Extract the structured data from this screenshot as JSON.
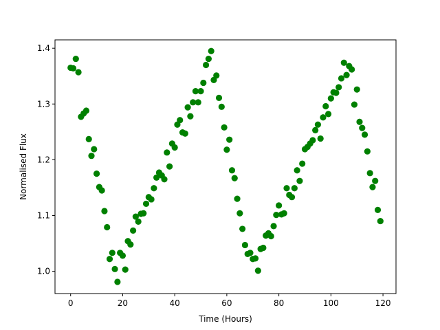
{
  "chart_data": {
    "type": "scatter",
    "xlabel": "Time (Hours)",
    "ylabel": "Normalised Flux",
    "xlim": [
      -6,
      125
    ],
    "ylim": [
      0.96,
      1.415
    ],
    "xticks": [
      0,
      20,
      40,
      60,
      80,
      100,
      120
    ],
    "yticks": [
      1.0,
      1.1,
      1.2,
      1.3,
      1.4
    ],
    "ytick_labels": [
      "1.0",
      "1.1",
      "1.2",
      "1.3",
      "1.4"
    ],
    "grid": false,
    "marker_color": "#008000",
    "x": [
      0,
      1,
      2,
      3,
      4,
      5,
      6,
      7,
      8,
      9,
      10,
      11,
      12,
      13,
      14,
      15,
      16,
      17,
      18,
      19,
      20,
      21,
      22,
      23,
      24,
      25,
      26,
      27,
      28,
      29,
      30,
      31,
      32,
      33,
      34,
      35,
      36,
      37,
      38,
      39,
      40,
      41,
      42,
      43,
      44,
      45,
      46,
      47,
      48,
      49,
      50,
      51,
      52,
      53,
      54,
      55,
      56,
      57,
      58,
      59,
      60,
      61,
      62,
      63,
      64,
      65,
      66,
      67,
      68,
      69,
      70,
      71,
      72,
      73,
      74,
      75,
      76,
      77,
      78,
      79,
      80,
      81,
      82,
      83,
      84,
      85,
      86,
      87,
      88,
      89,
      90,
      91,
      92,
      93,
      94,
      95,
      96,
      97,
      98,
      99,
      100,
      101,
      102,
      103,
      104,
      105,
      106,
      107,
      108,
      109,
      110,
      111,
      112,
      113,
      114,
      115,
      116,
      117,
      118,
      119
    ],
    "y": [
      1.365,
      1.364,
      1.381,
      1.357,
      1.277,
      1.283,
      1.288,
      1.237,
      1.207,
      1.219,
      1.175,
      1.151,
      1.145,
      1.108,
      1.079,
      1.022,
      1.033,
      1.004,
      0.981,
      1.033,
      1.028,
      1.003,
      1.054,
      1.048,
      1.073,
      1.098,
      1.089,
      1.103,
      1.104,
      1.121,
      1.133,
      1.129,
      1.149,
      1.168,
      1.177,
      1.172,
      1.165,
      1.213,
      1.188,
      1.229,
      1.222,
      1.263,
      1.271,
      1.249,
      1.247,
      1.294,
      1.278,
      1.303,
      1.323,
      1.303,
      1.323,
      1.338,
      1.37,
      1.381,
      1.395,
      1.343,
      1.351,
      1.311,
      1.295,
      1.258,
      1.218,
      1.236,
      1.181,
      1.167,
      1.13,
      1.104,
      1.076,
      1.047,
      1.031,
      1.033,
      1.022,
      1.023,
      1.001,
      1.04,
      1.042,
      1.064,
      1.068,
      1.063,
      1.081,
      1.101,
      1.118,
      1.102,
      1.104,
      1.149,
      1.137,
      1.133,
      1.149,
      1.181,
      1.162,
      1.193,
      1.219,
      1.223,
      1.229,
      1.235,
      1.253,
      1.263,
      1.238,
      1.276,
      1.296,
      1.282,
      1.31,
      1.321,
      1.32,
      1.33,
      1.346,
      1.374,
      1.352,
      1.368,
      1.362,
      1.299,
      1.326,
      1.268,
      1.257,
      1.245,
      1.215,
      1.176,
      1.151,
      1.162,
      1.11,
      1.09
    ]
  }
}
